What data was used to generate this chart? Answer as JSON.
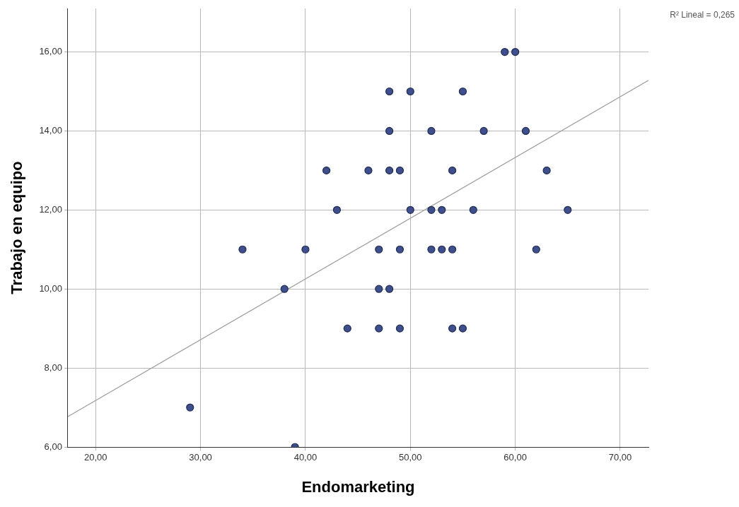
{
  "chart_data": {
    "type": "scatter",
    "xlabel": "Endomarketing",
    "ylabel": "Trabajo en equipo",
    "annotations": [
      "R² Lineal = 0,265"
    ],
    "xlim": [
      17.35,
      72.7
    ],
    "ylim": [
      6,
      17.1
    ],
    "xticks": [
      {
        "value": 20,
        "label": "20,00"
      },
      {
        "value": 30,
        "label": "30,00"
      },
      {
        "value": 40,
        "label": "40,00"
      },
      {
        "value": 50,
        "label": "50,00"
      },
      {
        "value": 60,
        "label": "60,00"
      },
      {
        "value": 70,
        "label": "70,00"
      }
    ],
    "yticks": [
      {
        "value": 6,
        "label": "6,00"
      },
      {
        "value": 8,
        "label": "8,00"
      },
      {
        "value": 10,
        "label": "10,00"
      },
      {
        "value": 12,
        "label": "12,00"
      },
      {
        "value": 14,
        "label": "14,00"
      },
      {
        "value": 16,
        "label": "16,00"
      }
    ],
    "grid": true,
    "legend": false,
    "marker": "circle",
    "series": [
      {
        "type": "scatter",
        "color": "#3e4f8c",
        "x": [
          59,
          60,
          48,
          50,
          55,
          48,
          52,
          57,
          61,
          42,
          46,
          48,
          49,
          54,
          63,
          43,
          50,
          52,
          53,
          56,
          65,
          34,
          40,
          47,
          49,
          52,
          53,
          54,
          62,
          38,
          47,
          48,
          44,
          47,
          49,
          54,
          55,
          29,
          39
        ],
        "values": [
          16,
          16,
          15,
          15,
          15,
          14,
          14,
          14,
          14,
          13,
          13,
          13,
          13,
          13,
          13,
          12,
          12,
          12,
          12,
          12,
          12,
          11,
          11,
          11,
          11,
          11,
          11,
          11,
          11,
          10,
          10,
          10,
          9,
          9,
          9,
          9,
          9,
          7,
          6
        ]
      },
      {
        "type": "line",
        "color": "#a0a0a0",
        "marker": "none",
        "x": [
          17.35,
          72.7
        ],
        "values": [
          6.77,
          15.28
        ]
      }
    ]
  }
}
